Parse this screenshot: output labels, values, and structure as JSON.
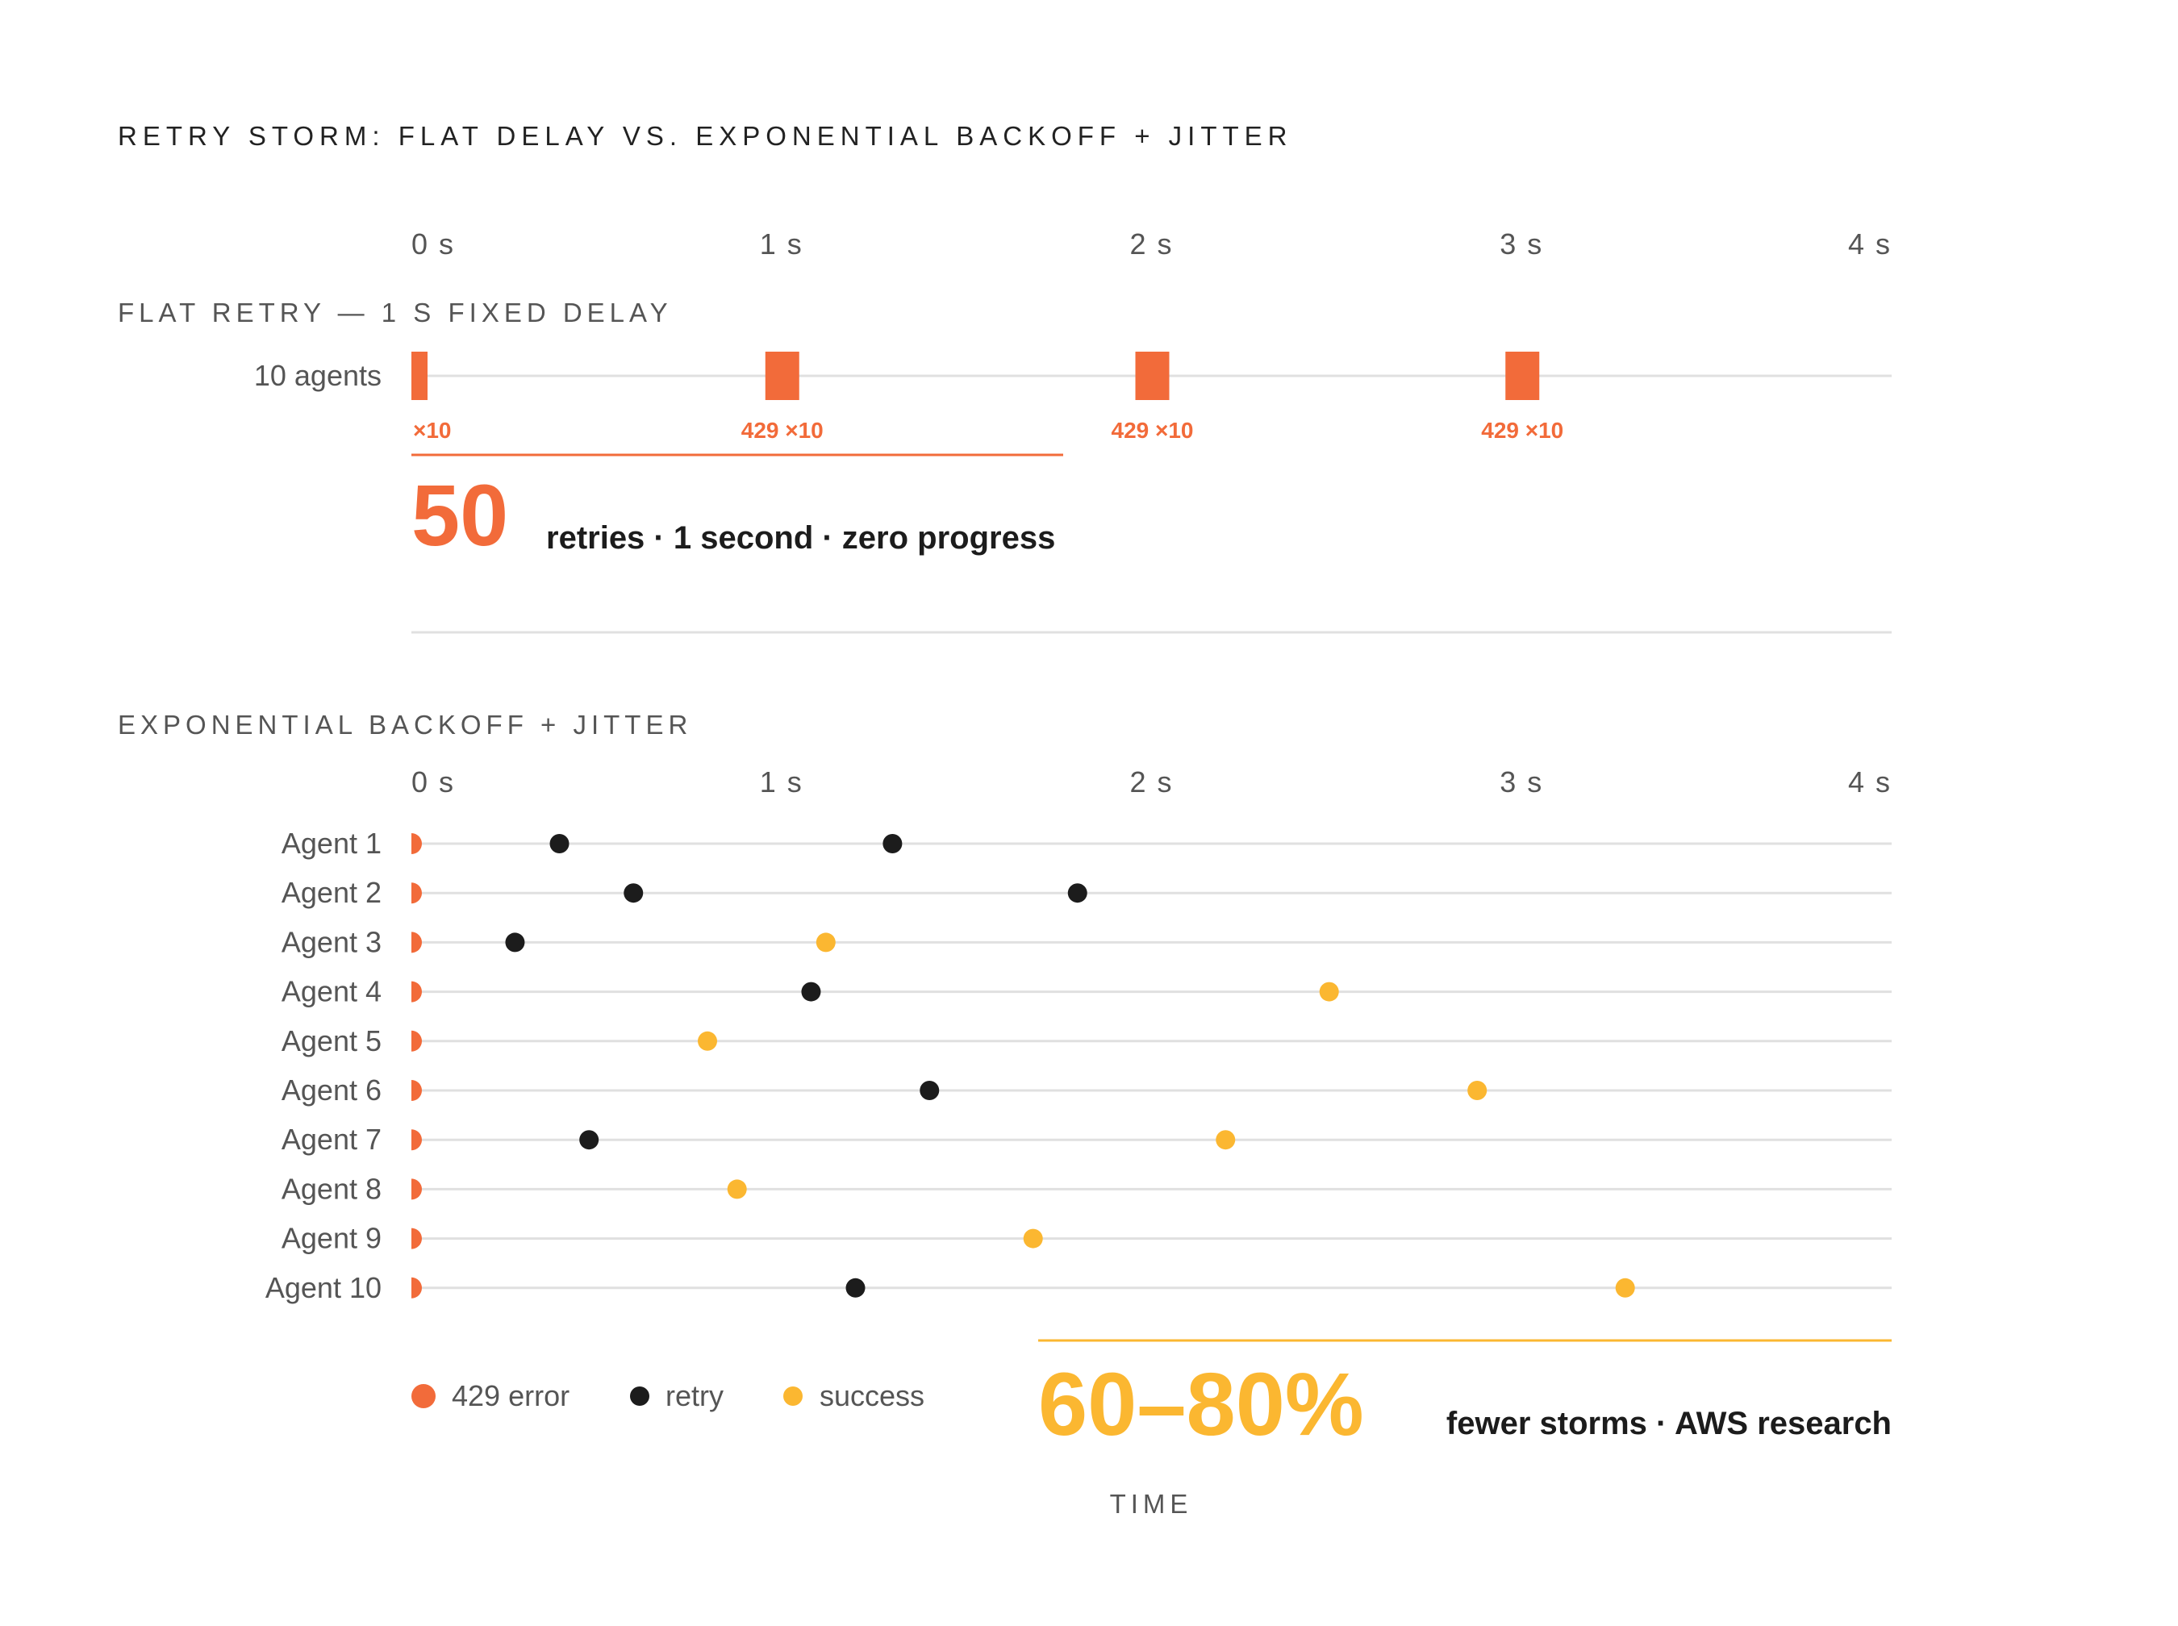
{
  "chart_data": {
    "type": "scatter",
    "title": "RETRY STORM: FLAT DELAY VS. EXPONENTIAL BACKOFF + JITTER",
    "xlabel": "TIME",
    "x_ticks": [
      "0 s",
      "1 s",
      "2 s",
      "3 s",
      "4 s"
    ],
    "xlim": [
      0,
      4
    ],
    "colors": {
      "error": "#F26B3A",
      "retry": "#1C1C1C",
      "success": "#FBB731",
      "axis": "#E0E0E0",
      "text": "#555555"
    },
    "flat": {
      "title": "FLAT RETRY — 1 S FIXED DELAY",
      "row_label": "10 agents",
      "bursts": [
        {
          "t": 0.0,
          "label": "×10"
        },
        {
          "t": 1.0,
          "label": "429 ×10"
        },
        {
          "t": 2.0,
          "label": "429 ×10"
        },
        {
          "t": 3.0,
          "label": "429 ×10"
        }
      ],
      "stat_value": "50",
      "stat_text": "retries · 1 second · zero progress"
    },
    "backoff": {
      "title": "EXPONENTIAL BACKOFF + JITTER",
      "agents": [
        {
          "label": "Agent 1",
          "error": 0,
          "retries": [
            0.4,
            1.3
          ],
          "success": null
        },
        {
          "label": "Agent 2",
          "error": 0,
          "retries": [
            0.6,
            1.8
          ],
          "success": null
        },
        {
          "label": "Agent 3",
          "error": 0,
          "retries": [
            0.28
          ],
          "success": 1.12
        },
        {
          "label": "Agent 4",
          "error": 0,
          "retries": [
            1.08
          ],
          "success": 2.48
        },
        {
          "label": "Agent 5",
          "error": 0,
          "retries": [],
          "success": 0.8
        },
        {
          "label": "Agent 6",
          "error": 0,
          "retries": [
            1.4
          ],
          "success": 2.88
        },
        {
          "label": "Agent 7",
          "error": 0,
          "retries": [
            0.48
          ],
          "success": 2.2
        },
        {
          "label": "Agent 8",
          "error": 0,
          "retries": [],
          "success": 0.88
        },
        {
          "label": "Agent 9",
          "error": 0,
          "retries": [],
          "success": 1.68
        },
        {
          "label": "Agent 10",
          "error": 0,
          "retries": [
            1.2
          ],
          "success": 3.28
        }
      ],
      "stat_value": "60–80%",
      "stat_text": "fewer storms · AWS research"
    },
    "legend": [
      {
        "key": "error",
        "label": "429 error"
      },
      {
        "key": "retry",
        "label": "retry"
      },
      {
        "key": "success",
        "label": "success"
      }
    ]
  }
}
